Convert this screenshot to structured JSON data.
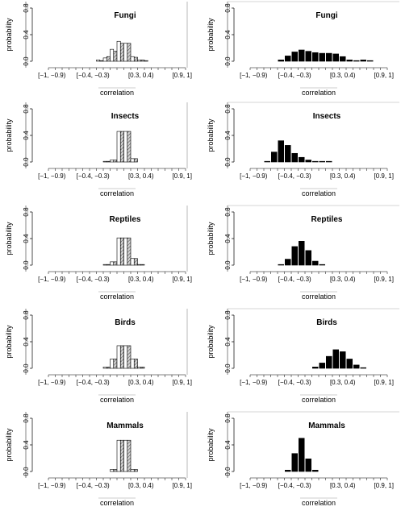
{
  "chart_data": {
    "type": "bar",
    "xlabel": "correlation",
    "ylabel": "probability",
    "ylim": [
      0,
      0.8
    ],
    "yticks": [
      "0.0",
      "0.4",
      "0.8"
    ],
    "xtick_labels": [
      "[−1, −0.9)",
      "[−0.4, −0.3)",
      "[0.3, 0.4)",
      "[0.9, 1]"
    ],
    "categories": [
      "[-1,-0.9)",
      "[-0.9,-0.8)",
      "[-0.8,-0.7)",
      "[-0.7,-0.6)",
      "[-0.6,-0.5)",
      "[-0.5,-0.4)",
      "[-0.4,-0.3)",
      "[-0.3,-0.2)",
      "[-0.2,-0.1)",
      "[-0.1,0)",
      "[0,0.1)",
      "[0.1,0.2)",
      "[0.2,0.3)",
      "[0.3,0.4)",
      "[0.4,0.5)",
      "[0.5,0.6)",
      "[0.6,0.7)",
      "[0.7,0.8)",
      "[0.8,0.9)",
      "[0.9,1]"
    ],
    "panels": [
      {
        "title": "Fungi",
        "column": "left",
        "paired": true,
        "series": [
          {
            "style": "white",
            "values": [
              0,
              0,
              0,
              0,
              0,
              0,
              0,
              0.02,
              0.05,
              0.18,
              0.3,
              0.27,
              0.07,
              0.02,
              0.01,
              0,
              0,
              0,
              0,
              0
            ]
          },
          {
            "style": "hatched",
            "values": [
              0,
              0,
              0,
              0,
              0,
              0,
              0,
              0.01,
              0.07,
              0.15,
              0.27,
              0.27,
              0.06,
              0.02,
              0,
              0,
              0,
              0,
              0,
              0
            ]
          }
        ]
      },
      {
        "title": "Fungi",
        "column": "right",
        "paired": false,
        "series": [
          {
            "style": "black",
            "values": [
              0,
              0,
              0,
              0,
              0.02,
              0.08,
              0.14,
              0.17,
              0.15,
              0.13,
              0.12,
              0.12,
              0.11,
              0.07,
              0.02,
              0.01,
              0.02,
              0.01,
              0,
              0
            ]
          }
        ]
      },
      {
        "title": "Insects",
        "column": "left",
        "paired": true,
        "series": [
          {
            "style": "white",
            "values": [
              0,
              0,
              0,
              0,
              0,
              0,
              0,
              0,
              0.01,
              0.03,
              0.46,
              0.46,
              0.05,
              0,
              0,
              0,
              0,
              0,
              0,
              0
            ]
          },
          {
            "style": "hatched",
            "values": [
              0,
              0,
              0,
              0,
              0,
              0,
              0,
              0,
              0.01,
              0.03,
              0.46,
              0.46,
              0.05,
              0,
              0,
              0,
              0,
              0,
              0,
              0
            ]
          }
        ]
      },
      {
        "title": "Insects",
        "column": "right",
        "paired": false,
        "series": [
          {
            "style": "black",
            "values": [
              0,
              0,
              0.01,
              0.15,
              0.32,
              0.25,
              0.13,
              0.07,
              0.03,
              0.01,
              0.01,
              0.01,
              0,
              0,
              0,
              0,
              0,
              0,
              0,
              0
            ]
          }
        ]
      },
      {
        "title": "Reptiles",
        "column": "left",
        "paired": true,
        "series": [
          {
            "style": "white",
            "values": [
              0,
              0,
              0,
              0,
              0,
              0,
              0,
              0,
              0.01,
              0.05,
              0.41,
              0.41,
              0.1,
              0.01,
              0,
              0,
              0,
              0,
              0,
              0
            ]
          },
          {
            "style": "hatched",
            "values": [
              0,
              0,
              0,
              0,
              0,
              0,
              0,
              0,
              0.01,
              0.05,
              0.41,
              0.41,
              0.1,
              0.01,
              0,
              0,
              0,
              0,
              0,
              0
            ]
          }
        ]
      },
      {
        "title": "Reptiles",
        "column": "right",
        "paired": false,
        "series": [
          {
            "style": "black",
            "values": [
              0,
              0,
              0,
              0,
              0.01,
              0.09,
              0.28,
              0.36,
              0.22,
              0.06,
              0.01,
              0,
              0,
              0,
              0,
              0,
              0,
              0,
              0,
              0
            ]
          }
        ]
      },
      {
        "title": "Birds",
        "column": "left",
        "paired": true,
        "series": [
          {
            "style": "white",
            "values": [
              0,
              0,
              0,
              0,
              0,
              0,
              0,
              0,
              0.02,
              0.14,
              0.34,
              0.34,
              0.14,
              0.02,
              0,
              0,
              0,
              0,
              0,
              0
            ]
          },
          {
            "style": "hatched",
            "values": [
              0,
              0,
              0,
              0,
              0,
              0,
              0,
              0,
              0.02,
              0.14,
              0.34,
              0.34,
              0.14,
              0.02,
              0,
              0,
              0,
              0,
              0,
              0
            ]
          }
        ]
      },
      {
        "title": "Birds",
        "column": "right",
        "paired": false,
        "series": [
          {
            "style": "black",
            "values": [
              0,
              0,
              0,
              0,
              0,
              0,
              0,
              0,
              0,
              0.02,
              0.08,
              0.18,
              0.28,
              0.25,
              0.14,
              0.05,
              0.01,
              0,
              0,
              0
            ]
          }
        ]
      },
      {
        "title": "Mammals",
        "column": "left",
        "paired": true,
        "series": [
          {
            "style": "white",
            "values": [
              0,
              0,
              0,
              0,
              0,
              0,
              0,
              0,
              0,
              0.03,
              0.47,
              0.47,
              0.03,
              0,
              0,
              0,
              0,
              0,
              0,
              0
            ]
          },
          {
            "style": "hatched",
            "values": [
              0,
              0,
              0,
              0,
              0,
              0,
              0,
              0,
              0,
              0.03,
              0.47,
              0.47,
              0.03,
              0,
              0,
              0,
              0,
              0,
              0,
              0
            ]
          }
        ]
      },
      {
        "title": "Mammals",
        "column": "right",
        "paired": false,
        "series": [
          {
            "style": "black",
            "values": [
              0,
              0,
              0,
              0,
              0,
              0.02,
              0.27,
              0.5,
              0.19,
              0.02,
              0,
              0,
              0,
              0,
              0,
              0,
              0,
              0,
              0,
              0
            ]
          }
        ]
      }
    ],
    "grid": false,
    "legend": "none",
    "colors": {
      "black_bar": "#000000",
      "white_bar": "#ffffff",
      "hatched_bar": "#bdbdbd",
      "outline": "#000000",
      "frame": "#555555"
    }
  }
}
